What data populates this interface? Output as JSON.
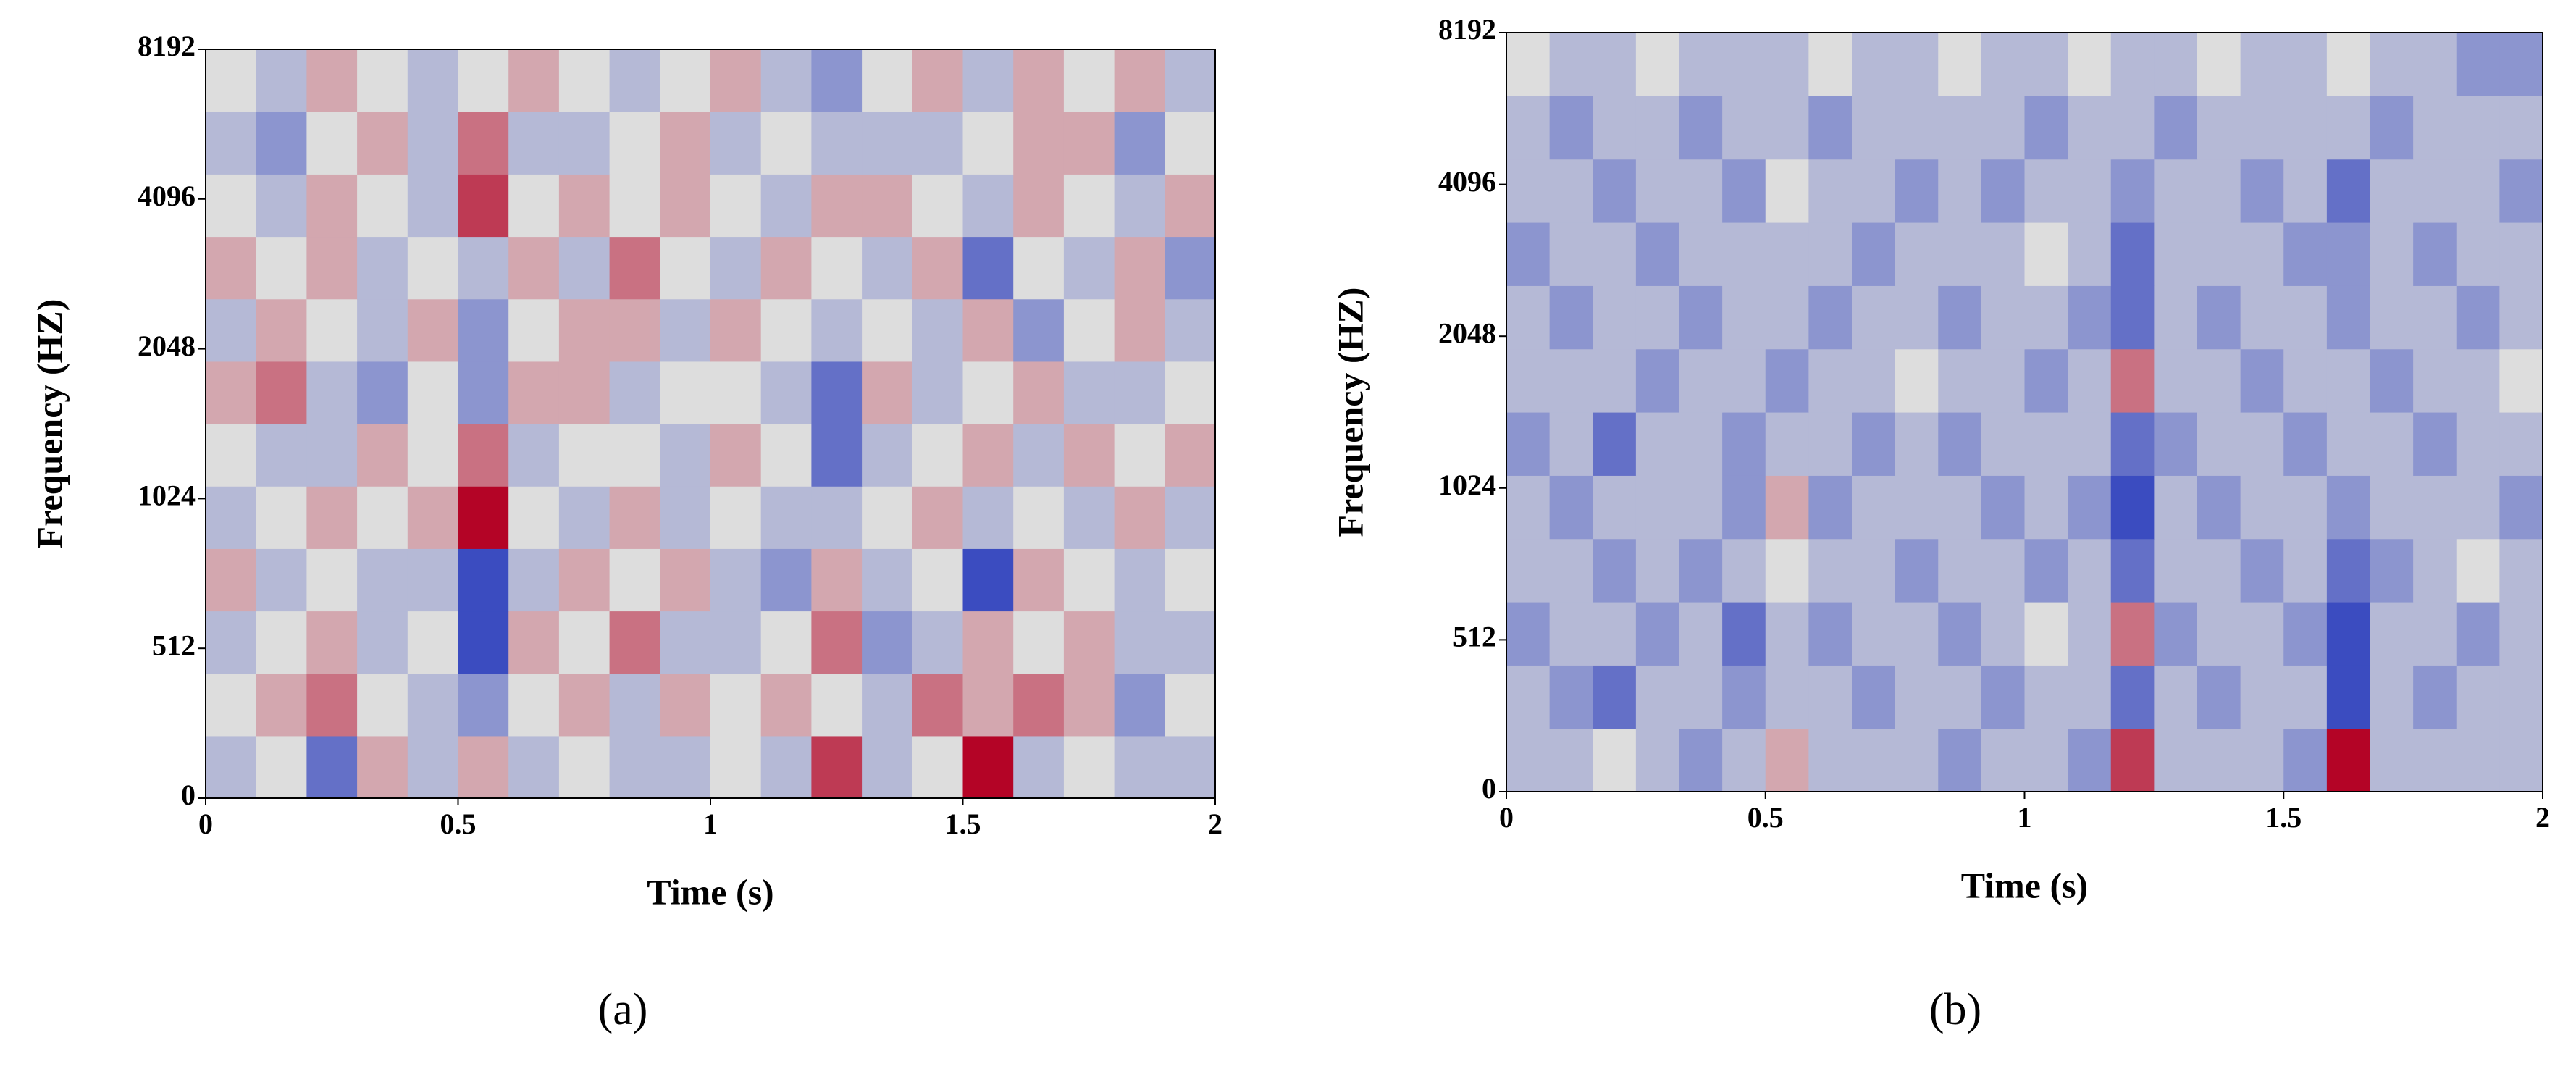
{
  "chart_data": [
    {
      "type": "heatmap",
      "caption": "(a)",
      "xlabel": "Time (s)",
      "ylabel": "Frequency (HZ)",
      "xlim": [
        0,
        2
      ],
      "xticks": [
        0,
        0.5,
        1,
        1.5,
        2
      ],
      "ylim": [
        0,
        8192
      ],
      "yticks": [
        0,
        512,
        1024,
        2048,
        4096,
        8192
      ],
      "yscale": "piecewise",
      "cmap": "coolwarm",
      "zlim": [
        -4,
        4
      ],
      "z": [
        [
          -1,
          0,
          -3,
          1,
          -1,
          1,
          -1,
          0,
          -1,
          -1,
          0,
          -1,
          3,
          -1,
          0,
          4,
          -1,
          0,
          -1,
          -1
        ],
        [
          0,
          1,
          2,
          0,
          -1,
          -2,
          0,
          1,
          -1,
          1,
          0,
          1,
          0,
          -1,
          2,
          1,
          2,
          1,
          -2,
          0
        ],
        [
          -1,
          0,
          1,
          -1,
          0,
          -4,
          1,
          0,
          2,
          -1,
          -1,
          0,
          2,
          -2,
          -1,
          1,
          0,
          1,
          -1,
          -1
        ],
        [
          1,
          -1,
          0,
          -1,
          -1,
          -4,
          -1,
          1,
          0,
          1,
          -1,
          -2,
          1,
          -1,
          0,
          -4,
          1,
          0,
          -1,
          0
        ],
        [
          -1,
          0,
          1,
          0,
          1,
          4,
          0,
          -1,
          1,
          -1,
          0,
          -1,
          -1,
          0,
          1,
          -1,
          0,
          -1,
          1,
          -1
        ],
        [
          0,
          -1,
          -1,
          1,
          0,
          2,
          -1,
          0,
          0,
          -1,
          1,
          0,
          -3,
          -1,
          0,
          1,
          -1,
          1,
          0,
          1
        ],
        [
          1,
          2,
          -1,
          -2,
          0,
          -2,
          1,
          1,
          -1,
          0,
          0,
          -1,
          -3,
          1,
          -1,
          0,
          1,
          -1,
          -1,
          0
        ],
        [
          -1,
          1,
          0,
          -1,
          1,
          -2,
          0,
          1,
          1,
          -1,
          1,
          0,
          -1,
          0,
          -1,
          1,
          -2,
          0,
          1,
          -1
        ],
        [
          1,
          0,
          1,
          -1,
          0,
          -1,
          1,
          -1,
          2,
          0,
          -1,
          1,
          0,
          -1,
          1,
          -3,
          0,
          -1,
          1,
          -2
        ],
        [
          0,
          -1,
          1,
          0,
          -1,
          3,
          0,
          1,
          0,
          1,
          0,
          -1,
          1,
          1,
          0,
          -1,
          1,
          0,
          -1,
          1
        ],
        [
          -1,
          -2,
          0,
          1,
          -1,
          2,
          -1,
          -1,
          0,
          1,
          -1,
          0,
          -1,
          -1,
          -1,
          0,
          1,
          1,
          -2,
          0
        ],
        [
          0,
          -1,
          1,
          0,
          -1,
          0,
          1,
          0,
          -1,
          0,
          1,
          -1,
          -2,
          0,
          1,
          -1,
          1,
          0,
          1,
          -1
        ]
      ]
    },
    {
      "type": "heatmap",
      "caption": "(b)",
      "xlabel": "Time (s)",
      "ylabel": "Frequency (HZ)",
      "xlim": [
        0,
        2
      ],
      "xticks": [
        0,
        0.5,
        1,
        1.5,
        2
      ],
      "ylim": [
        0,
        8192
      ],
      "yticks": [
        0,
        512,
        1024,
        2048,
        4096,
        8192
      ],
      "yscale": "piecewise",
      "cmap": "coolwarm",
      "zlim": [
        -4,
        4
      ],
      "z": [
        [
          -1,
          -1,
          0,
          -1,
          -2,
          -1,
          1,
          -1,
          -1,
          -1,
          -2,
          -1,
          -1,
          -2,
          3,
          -1,
          -1,
          -1,
          -2,
          4,
          -1,
          -1,
          -1,
          -1
        ],
        [
          -1,
          -2,
          -3,
          -1,
          -1,
          -2,
          -1,
          -1,
          -2,
          -1,
          -1,
          -2,
          -1,
          -1,
          -3,
          -1,
          -2,
          -1,
          -1,
          -4,
          -1,
          -2,
          -1,
          -1
        ],
        [
          -2,
          -1,
          -1,
          -2,
          -1,
          -3,
          -1,
          -2,
          -1,
          -1,
          -2,
          -1,
          0,
          -1,
          2,
          -2,
          -1,
          -1,
          -2,
          -4,
          -1,
          -1,
          -2,
          -1
        ],
        [
          -1,
          -1,
          -2,
          -1,
          -2,
          -1,
          0,
          -1,
          -1,
          -2,
          -1,
          -1,
          -2,
          -1,
          -3,
          -1,
          -1,
          -2,
          -1,
          -3,
          -2,
          -1,
          0,
          -1
        ],
        [
          -1,
          -2,
          -1,
          -1,
          -1,
          -2,
          1,
          -2,
          -1,
          -1,
          -1,
          -2,
          -1,
          -2,
          -4,
          -1,
          -2,
          -1,
          -1,
          -2,
          -1,
          -1,
          -1,
          -2
        ],
        [
          -2,
          -1,
          -3,
          -1,
          -1,
          -2,
          -1,
          -1,
          -2,
          -1,
          -2,
          -1,
          -1,
          -1,
          -3,
          -2,
          -1,
          -1,
          -2,
          -1,
          -1,
          -2,
          -1,
          -1
        ],
        [
          -1,
          -1,
          -1,
          -2,
          -1,
          -1,
          -2,
          -1,
          -1,
          0,
          -1,
          -1,
          -2,
          -1,
          2,
          -1,
          -1,
          -2,
          -1,
          -1,
          -2,
          -1,
          -1,
          0
        ],
        [
          -1,
          -2,
          -1,
          -1,
          -2,
          -1,
          -1,
          -2,
          -1,
          -1,
          -2,
          -1,
          -1,
          -2,
          -3,
          -1,
          -2,
          -1,
          -1,
          -2,
          -1,
          -1,
          -2,
          -1
        ],
        [
          -2,
          -1,
          -1,
          -2,
          -1,
          -1,
          -1,
          -1,
          -2,
          -1,
          -1,
          -1,
          0,
          -1,
          -3,
          -1,
          -1,
          -1,
          -2,
          -2,
          -1,
          -2,
          -1,
          -1
        ],
        [
          -1,
          -1,
          -2,
          -1,
          -1,
          -2,
          0,
          -1,
          -1,
          -2,
          -1,
          -2,
          -1,
          -1,
          -2,
          -1,
          -1,
          -2,
          -1,
          -3,
          -1,
          -1,
          -1,
          -2
        ],
        [
          -1,
          -2,
          -1,
          -1,
          -2,
          -1,
          -1,
          -2,
          -1,
          -1,
          -1,
          -1,
          -2,
          -1,
          -1,
          -2,
          -1,
          -1,
          -1,
          -1,
          -2,
          -1,
          -1,
          -1
        ],
        [
          0,
          -1,
          -1,
          0,
          -1,
          -1,
          -1,
          0,
          -1,
          -1,
          0,
          -1,
          -1,
          0,
          -1,
          -1,
          0,
          -1,
          -1,
          0,
          -1,
          -1,
          -2,
          -2
        ]
      ]
    }
  ]
}
